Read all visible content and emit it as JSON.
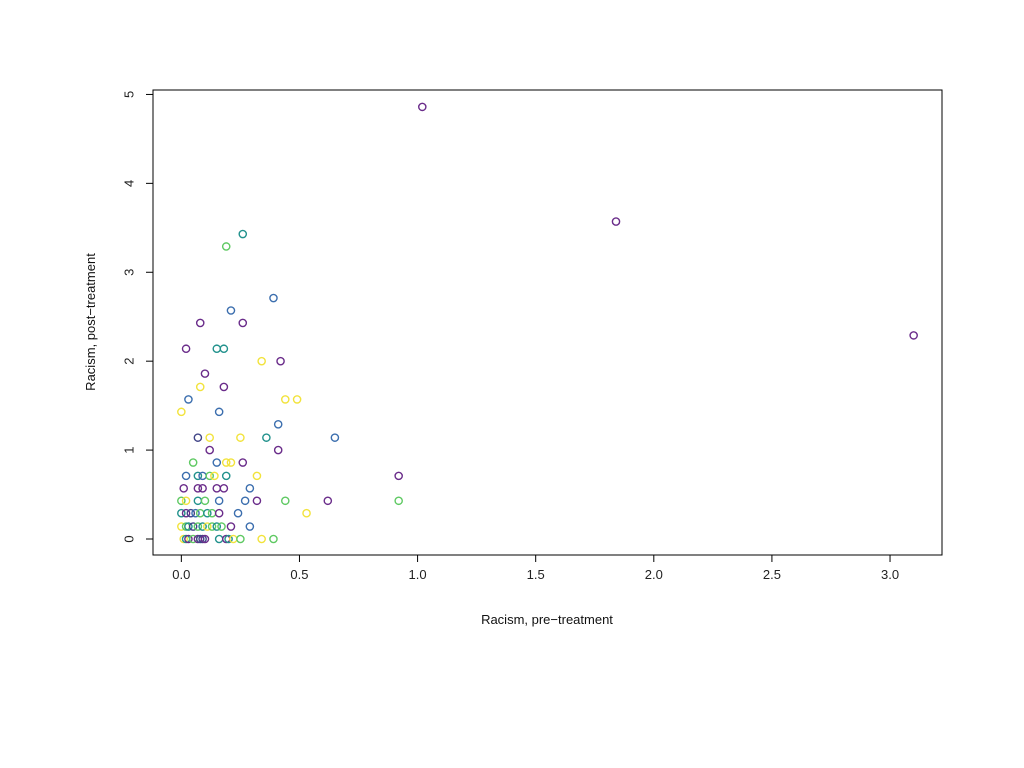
{
  "chart_data": {
    "type": "scatter",
    "title": "",
    "xlabel": "Racism, pre−treatment",
    "ylabel": "Racism, post−treatment",
    "xlim": [
      -0.12,
      3.22
    ],
    "ylim": [
      -0.18,
      5.05
    ],
    "xticks": [
      0,
      0.5,
      1,
      1.5,
      2,
      2.5,
      3
    ],
    "xtick_labels": [
      "0.0",
      "0.5",
      "1.0",
      "1.5",
      "2.0",
      "2.5",
      "3.0"
    ],
    "yticks": [
      0,
      1,
      2,
      3,
      4,
      5
    ],
    "ytick_labels": [
      "0",
      "1",
      "2",
      "3",
      "4",
      "5"
    ],
    "grid": false,
    "legend": "none",
    "palette": {
      "purple": "#6a2c8a",
      "navy": "#414487",
      "blue": "#3b6eae",
      "teal": "#21918c",
      "green": "#5ec962",
      "yellow": "#f2e33c"
    },
    "points": [
      {
        "x": 1.02,
        "y": 4.86,
        "c": "purple"
      },
      {
        "x": 1.84,
        "y": 3.57,
        "c": "purple"
      },
      {
        "x": 3.1,
        "y": 2.29,
        "c": "purple"
      },
      {
        "x": 0.26,
        "y": 3.43,
        "c": "teal"
      },
      {
        "x": 0.19,
        "y": 3.29,
        "c": "green"
      },
      {
        "x": 0.39,
        "y": 2.71,
        "c": "blue"
      },
      {
        "x": 0.21,
        "y": 2.57,
        "c": "blue"
      },
      {
        "x": 0.08,
        "y": 2.43,
        "c": "purple"
      },
      {
        "x": 0.26,
        "y": 2.43,
        "c": "purple"
      },
      {
        "x": 0.02,
        "y": 2.14,
        "c": "purple"
      },
      {
        "x": 0.15,
        "y": 2.14,
        "c": "teal"
      },
      {
        "x": 0.18,
        "y": 2.14,
        "c": "teal"
      },
      {
        "x": 0.34,
        "y": 2.0,
        "c": "yellow"
      },
      {
        "x": 0.42,
        "y": 2.0,
        "c": "purple"
      },
      {
        "x": 0.1,
        "y": 1.86,
        "c": "purple"
      },
      {
        "x": 0.08,
        "y": 1.71,
        "c": "yellow"
      },
      {
        "x": 0.18,
        "y": 1.71,
        "c": "purple"
      },
      {
        "x": 0.03,
        "y": 1.57,
        "c": "blue"
      },
      {
        "x": 0.44,
        "y": 1.57,
        "c": "yellow"
      },
      {
        "x": 0.49,
        "y": 1.57,
        "c": "yellow"
      },
      {
        "x": 0.0,
        "y": 1.43,
        "c": "yellow"
      },
      {
        "x": 0.16,
        "y": 1.43,
        "c": "blue"
      },
      {
        "x": 0.41,
        "y": 1.29,
        "c": "blue"
      },
      {
        "x": 0.07,
        "y": 1.14,
        "c": "navy"
      },
      {
        "x": 0.12,
        "y": 1.14,
        "c": "yellow"
      },
      {
        "x": 0.25,
        "y": 1.14,
        "c": "yellow"
      },
      {
        "x": 0.36,
        "y": 1.14,
        "c": "teal"
      },
      {
        "x": 0.65,
        "y": 1.14,
        "c": "blue"
      },
      {
        "x": 0.12,
        "y": 1.0,
        "c": "purple"
      },
      {
        "x": 0.41,
        "y": 1.0,
        "c": "purple"
      },
      {
        "x": 0.05,
        "y": 0.86,
        "c": "green"
      },
      {
        "x": 0.15,
        "y": 0.86,
        "c": "blue"
      },
      {
        "x": 0.19,
        "y": 0.86,
        "c": "yellow"
      },
      {
        "x": 0.21,
        "y": 0.86,
        "c": "yellow"
      },
      {
        "x": 0.26,
        "y": 0.86,
        "c": "purple"
      },
      {
        "x": 0.02,
        "y": 0.71,
        "c": "blue"
      },
      {
        "x": 0.07,
        "y": 0.71,
        "c": "teal"
      },
      {
        "x": 0.09,
        "y": 0.71,
        "c": "blue"
      },
      {
        "x": 0.12,
        "y": 0.71,
        "c": "green"
      },
      {
        "x": 0.14,
        "y": 0.71,
        "c": "yellow"
      },
      {
        "x": 0.19,
        "y": 0.71,
        "c": "teal"
      },
      {
        "x": 0.32,
        "y": 0.71,
        "c": "yellow"
      },
      {
        "x": 0.92,
        "y": 0.71,
        "c": "purple"
      },
      {
        "x": 0.01,
        "y": 0.57,
        "c": "purple"
      },
      {
        "x": 0.07,
        "y": 0.57,
        "c": "purple"
      },
      {
        "x": 0.09,
        "y": 0.57,
        "c": "purple"
      },
      {
        "x": 0.15,
        "y": 0.57,
        "c": "purple"
      },
      {
        "x": 0.18,
        "y": 0.57,
        "c": "purple"
      },
      {
        "x": 0.29,
        "y": 0.57,
        "c": "blue"
      },
      {
        "x": 0.0,
        "y": 0.43,
        "c": "green"
      },
      {
        "x": 0.02,
        "y": 0.43,
        "c": "yellow"
      },
      {
        "x": 0.07,
        "y": 0.43,
        "c": "teal"
      },
      {
        "x": 0.1,
        "y": 0.43,
        "c": "green"
      },
      {
        "x": 0.16,
        "y": 0.43,
        "c": "blue"
      },
      {
        "x": 0.27,
        "y": 0.43,
        "c": "blue"
      },
      {
        "x": 0.32,
        "y": 0.43,
        "c": "purple"
      },
      {
        "x": 0.44,
        "y": 0.43,
        "c": "green"
      },
      {
        "x": 0.62,
        "y": 0.43,
        "c": "purple"
      },
      {
        "x": 0.92,
        "y": 0.43,
        "c": "green"
      },
      {
        "x": 0.0,
        "y": 0.29,
        "c": "teal"
      },
      {
        "x": 0.02,
        "y": 0.29,
        "c": "purple"
      },
      {
        "x": 0.04,
        "y": 0.29,
        "c": "navy"
      },
      {
        "x": 0.06,
        "y": 0.29,
        "c": "blue"
      },
      {
        "x": 0.08,
        "y": 0.29,
        "c": "green"
      },
      {
        "x": 0.11,
        "y": 0.29,
        "c": "teal"
      },
      {
        "x": 0.13,
        "y": 0.29,
        "c": "green"
      },
      {
        "x": 0.16,
        "y": 0.29,
        "c": "purple"
      },
      {
        "x": 0.24,
        "y": 0.29,
        "c": "blue"
      },
      {
        "x": 0.53,
        "y": 0.29,
        "c": "yellow"
      },
      {
        "x": 0.0,
        "y": 0.14,
        "c": "yellow"
      },
      {
        "x": 0.02,
        "y": 0.14,
        "c": "green"
      },
      {
        "x": 0.03,
        "y": 0.14,
        "c": "teal"
      },
      {
        "x": 0.05,
        "y": 0.14,
        "c": "navy"
      },
      {
        "x": 0.07,
        "y": 0.14,
        "c": "green"
      },
      {
        "x": 0.09,
        "y": 0.14,
        "c": "teal"
      },
      {
        "x": 0.11,
        "y": 0.14,
        "c": "yellow"
      },
      {
        "x": 0.13,
        "y": 0.14,
        "c": "green"
      },
      {
        "x": 0.15,
        "y": 0.14,
        "c": "teal"
      },
      {
        "x": 0.17,
        "y": 0.14,
        "c": "green"
      },
      {
        "x": 0.21,
        "y": 0.14,
        "c": "purple"
      },
      {
        "x": 0.29,
        "y": 0.14,
        "c": "blue"
      },
      {
        "x": 0.01,
        "y": 0.0,
        "c": "yellow"
      },
      {
        "x": 0.02,
        "y": 0.0,
        "c": "teal"
      },
      {
        "x": 0.03,
        "y": 0.0,
        "c": "purple"
      },
      {
        "x": 0.05,
        "y": 0.0,
        "c": "green"
      },
      {
        "x": 0.07,
        "y": 0.0,
        "c": "purple"
      },
      {
        "x": 0.08,
        "y": 0.0,
        "c": "navy"
      },
      {
        "x": 0.09,
        "y": 0.0,
        "c": "navy"
      },
      {
        "x": 0.1,
        "y": 0.0,
        "c": "purple"
      },
      {
        "x": 0.16,
        "y": 0.0,
        "c": "teal"
      },
      {
        "x": 0.19,
        "y": 0.0,
        "c": "purple"
      },
      {
        "x": 0.2,
        "y": 0.0,
        "c": "teal"
      },
      {
        "x": 0.22,
        "y": 0.0,
        "c": "yellow"
      },
      {
        "x": 0.25,
        "y": 0.0,
        "c": "green"
      },
      {
        "x": 0.34,
        "y": 0.0,
        "c": "yellow"
      },
      {
        "x": 0.39,
        "y": 0.0,
        "c": "green"
      }
    ]
  }
}
